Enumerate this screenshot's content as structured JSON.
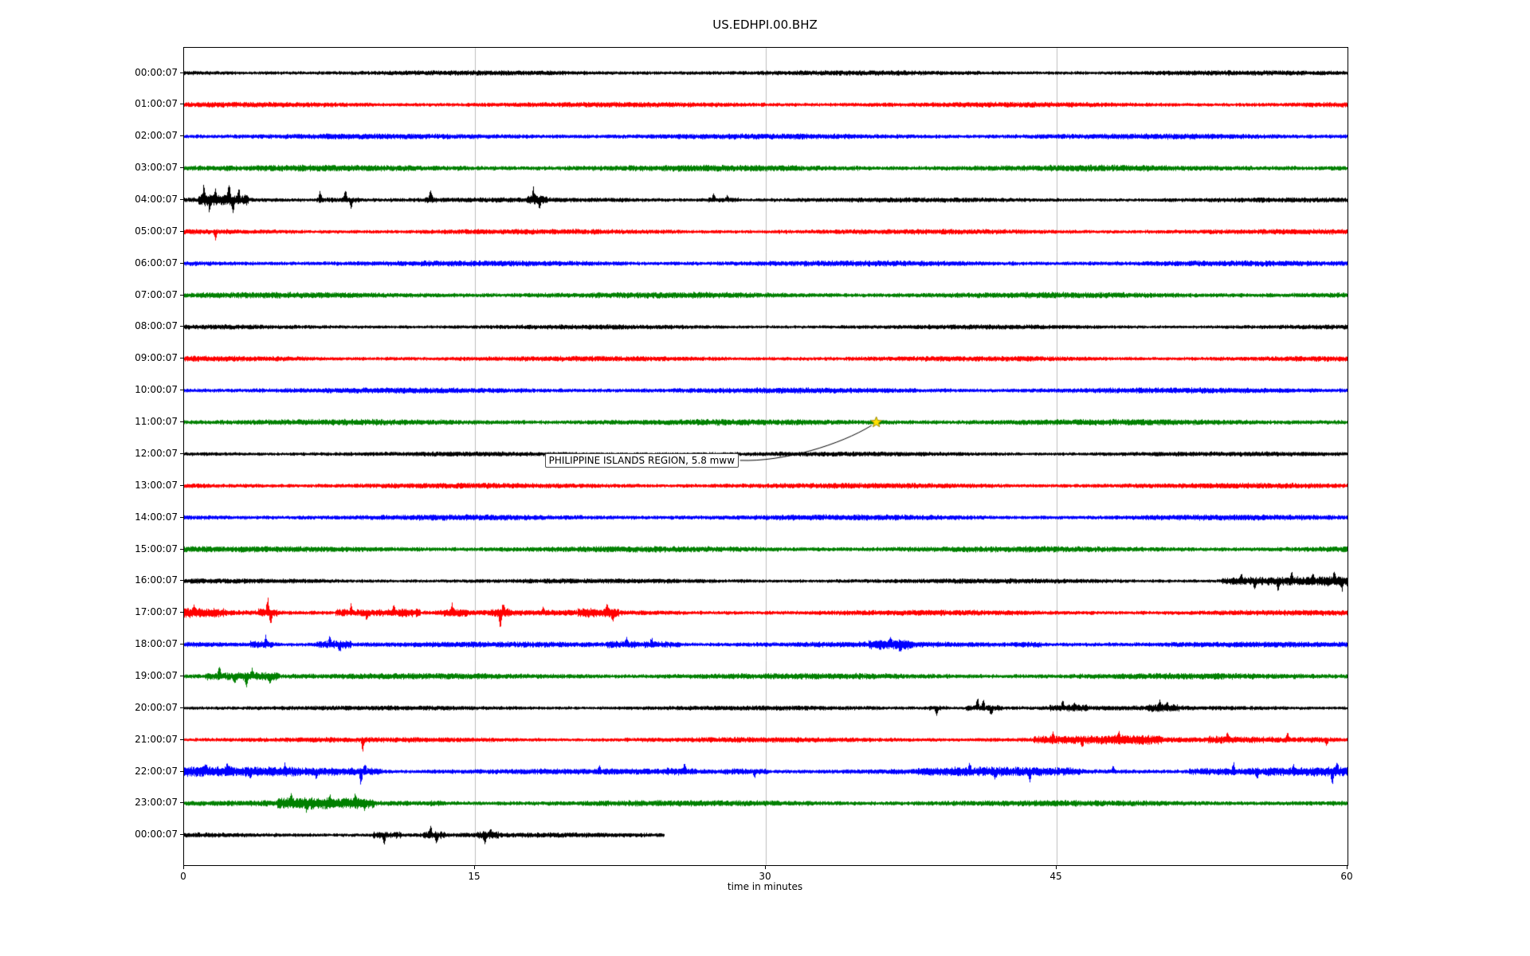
{
  "chart_data": {
    "type": "line",
    "subtype": "seismogram-helicorder-dayplot",
    "title": "US.EDHPI.00.BHZ",
    "xlabel": "time in minutes",
    "x_range": [
      0,
      60
    ],
    "x_ticks": [
      0,
      15,
      30,
      45,
      60
    ],
    "grid_x": [
      15,
      30,
      45
    ],
    "grid_color": "#bdbdbd",
    "trace_color_cycle": [
      "#000000",
      "#ff0000",
      "#0000ff",
      "#008000"
    ],
    "annotation": {
      "text": "PHILIPPINE ISLANDS REGION, 5.8 mww",
      "star_row_index": 11,
      "star_x_minutes": 35.7,
      "label_x_minutes": 18.6,
      "label_row_position": 12.2,
      "marker": "star",
      "marker_color": "#ffe200",
      "marker_edge_color": "#9a8700"
    },
    "rows": [
      {
        "label": "00:00:07",
        "color": "#000000",
        "amp": 2.8,
        "end": 60
      },
      {
        "label": "01:00:07",
        "color": "#ff0000",
        "amp": 3.0,
        "end": 60
      },
      {
        "label": "02:00:07",
        "color": "#0000ff",
        "amp": 3.2,
        "end": 60
      },
      {
        "label": "03:00:07",
        "color": "#008000",
        "amp": 3.6,
        "end": 60
      },
      {
        "label": "04:00:07",
        "color": "#000000",
        "amp": 2.8,
        "end": 60,
        "bursts": [
          [
            0.7,
            3.3,
            2.4
          ],
          [
            6.8,
            9.0,
            1.6
          ],
          [
            12.4,
            13.0,
            1.5
          ],
          [
            17.7,
            18.7,
            1.8
          ],
          [
            27.0,
            28.6,
            1.5
          ]
        ],
        "spikes": [
          [
            1.0,
            17
          ],
          [
            1.3,
            -12
          ],
          [
            1.6,
            12
          ],
          [
            2.3,
            22
          ],
          [
            2.5,
            -16
          ],
          [
            2.8,
            10
          ],
          [
            7.0,
            10
          ],
          [
            8.3,
            14
          ],
          [
            8.6,
            -11
          ],
          [
            12.7,
            12
          ],
          [
            18.0,
            14
          ],
          [
            18.3,
            -9
          ],
          [
            27.3,
            8
          ],
          [
            28.0,
            6
          ]
        ]
      },
      {
        "label": "05:00:07",
        "color": "#ff0000",
        "amp": 3.0,
        "end": 60,
        "spikes": [
          [
            1.6,
            -12
          ]
        ]
      },
      {
        "label": "06:00:07",
        "color": "#0000ff",
        "amp": 3.2,
        "end": 60
      },
      {
        "label": "07:00:07",
        "color": "#008000",
        "amp": 3.4,
        "end": 60
      },
      {
        "label": "08:00:07",
        "color": "#000000",
        "amp": 2.7,
        "end": 60
      },
      {
        "label": "09:00:07",
        "color": "#ff0000",
        "amp": 3.0,
        "end": 60
      },
      {
        "label": "10:00:07",
        "color": "#0000ff",
        "amp": 3.2,
        "end": 60
      },
      {
        "label": "11:00:07",
        "color": "#008000",
        "amp": 3.4,
        "end": 60
      },
      {
        "label": "12:00:07",
        "color": "#000000",
        "amp": 2.7,
        "end": 60
      },
      {
        "label": "13:00:07",
        "color": "#ff0000",
        "amp": 3.1,
        "end": 60
      },
      {
        "label": "14:00:07",
        "color": "#0000ff",
        "amp": 3.2,
        "end": 60
      },
      {
        "label": "15:00:07",
        "color": "#008000",
        "amp": 3.4,
        "end": 60
      },
      {
        "label": "16:00:07",
        "color": "#000000",
        "amp": 2.8,
        "end": 60,
        "bursts": [
          [
            53.5,
            60,
            2.0
          ]
        ],
        "spikes": [
          [
            54.5,
            8
          ],
          [
            55.2,
            -9
          ],
          [
            56.4,
            -11
          ],
          [
            57.1,
            9
          ],
          [
            58.2,
            8
          ],
          [
            59.3,
            10
          ],
          [
            59.7,
            -9
          ]
        ]
      },
      {
        "label": "17:00:07",
        "color": "#ff0000",
        "amp": 3.1,
        "end": 60,
        "bursts": [
          [
            0,
            2.2,
            1.7
          ],
          [
            3.8,
            4.8,
            1.8
          ],
          [
            7.8,
            12.2,
            1.9
          ],
          [
            13.2,
            14.6,
            1.7
          ],
          [
            15.8,
            16.8,
            1.6
          ],
          [
            20.3,
            22.4,
            1.7
          ]
        ],
        "spikes": [
          [
            0.5,
            8
          ],
          [
            4.3,
            20
          ],
          [
            4.45,
            -17
          ],
          [
            8.6,
            9
          ],
          [
            9.4,
            -8
          ],
          [
            10.8,
            9
          ],
          [
            13.8,
            10
          ],
          [
            16.3,
            -22
          ],
          [
            16.45,
            12
          ],
          [
            18.5,
            8
          ],
          [
            21.8,
            9
          ],
          [
            22.1,
            -7
          ]
        ]
      },
      {
        "label": "18:00:07",
        "color": "#0000ff",
        "amp": 3.2,
        "end": 60,
        "bursts": [
          [
            3.4,
            4.6,
            1.7
          ],
          [
            6.8,
            8.6,
            1.9
          ],
          [
            21.8,
            25.6,
            1.6
          ],
          [
            35.3,
            37.6,
            1.6
          ],
          [
            42.8,
            44.2,
            1.4
          ]
        ],
        "spikes": [
          [
            4.2,
            10
          ],
          [
            7.5,
            11
          ],
          [
            8.0,
            -9
          ],
          [
            22.8,
            8
          ],
          [
            24.1,
            7
          ],
          [
            36.4,
            9
          ],
          [
            36.9,
            -7
          ]
        ]
      },
      {
        "label": "19:00:07",
        "color": "#008000",
        "amp": 3.4,
        "end": 60,
        "bursts": [
          [
            1.1,
            4.9,
            1.9
          ]
        ],
        "spikes": [
          [
            1.8,
            11
          ],
          [
            2.6,
            -8
          ],
          [
            3.2,
            -14
          ],
          [
            3.5,
            10
          ],
          [
            4.4,
            -9
          ]
        ]
      },
      {
        "label": "20:00:07",
        "color": "#000000",
        "amp": 2.7,
        "end": 60,
        "bursts": [
          [
            38.4,
            39.4,
            1.5
          ],
          [
            40.3,
            42.2,
            1.7
          ],
          [
            44.6,
            46.6,
            1.5
          ],
          [
            49.7,
            51.3,
            1.5
          ]
        ],
        "spikes": [
          [
            38.8,
            -10
          ],
          [
            40.9,
            14
          ],
          [
            41.2,
            11
          ],
          [
            41.6,
            -8
          ],
          [
            45.3,
            8
          ],
          [
            45.9,
            6
          ],
          [
            50.3,
            8
          ],
          [
            50.7,
            6
          ]
        ]
      },
      {
        "label": "21:00:07",
        "color": "#ff0000",
        "amp": 3.0,
        "end": 60,
        "bursts": [
          [
            43.8,
            50.4,
            1.7
          ],
          [
            52.8,
            59.6,
            1.5
          ]
        ],
        "spikes": [
          [
            9.2,
            -14
          ],
          [
            44.8,
            8
          ],
          [
            46.3,
            -8
          ],
          [
            48.2,
            8
          ],
          [
            53.8,
            9
          ],
          [
            56.9,
            7
          ],
          [
            58.9,
            -7
          ]
        ]
      },
      {
        "label": "22:00:07",
        "color": "#0000ff",
        "amp": 3.3,
        "end": 60,
        "bursts": [
          [
            0,
            10.2,
            1.7
          ],
          [
            24.8,
            26.4,
            1.4
          ],
          [
            27.9,
            30.2,
            1.4
          ],
          [
            37.8,
            46.2,
            1.5
          ],
          [
            51.8,
            60,
            1.6
          ]
        ],
        "spikes": [
          [
            1.1,
            8
          ],
          [
            2.2,
            10
          ],
          [
            3.4,
            -8
          ],
          [
            5.2,
            8
          ],
          [
            6.8,
            -8
          ],
          [
            9.1,
            -19
          ],
          [
            9.3,
            10
          ],
          [
            21.4,
            7
          ],
          [
            25.8,
            9
          ],
          [
            29.4,
            -7
          ],
          [
            40.5,
            11
          ],
          [
            41.8,
            -7
          ],
          [
            43.6,
            -10
          ],
          [
            47.9,
            7
          ],
          [
            54.1,
            10
          ],
          [
            55.3,
            -8
          ],
          [
            57.2,
            7
          ],
          [
            59.2,
            -17
          ],
          [
            59.45,
            10
          ]
        ]
      },
      {
        "label": "23:00:07",
        "color": "#008000",
        "amp": 3.4,
        "end": 60,
        "bursts": [
          [
            4.8,
            9.8,
            1.8
          ],
          [
            12.5,
            13.5,
            1.3
          ]
        ],
        "spikes": [
          [
            5.5,
            10
          ],
          [
            6.3,
            -8
          ],
          [
            7.5,
            9
          ],
          [
            8.8,
            8
          ],
          [
            9.3,
            -7
          ]
        ]
      },
      {
        "label": "00:00:07",
        "color": "#000000",
        "amp": 2.8,
        "end": 24.8,
        "bursts": [
          [
            9.7,
            11.2,
            1.8
          ],
          [
            12.3,
            13.4,
            1.8
          ],
          [
            15.1,
            16.2,
            1.6
          ]
        ],
        "spikes": [
          [
            10.3,
            -14
          ],
          [
            12.7,
            11
          ],
          [
            13.0,
            -8
          ],
          [
            15.5,
            -10
          ],
          [
            15.8,
            7
          ]
        ]
      }
    ]
  }
}
